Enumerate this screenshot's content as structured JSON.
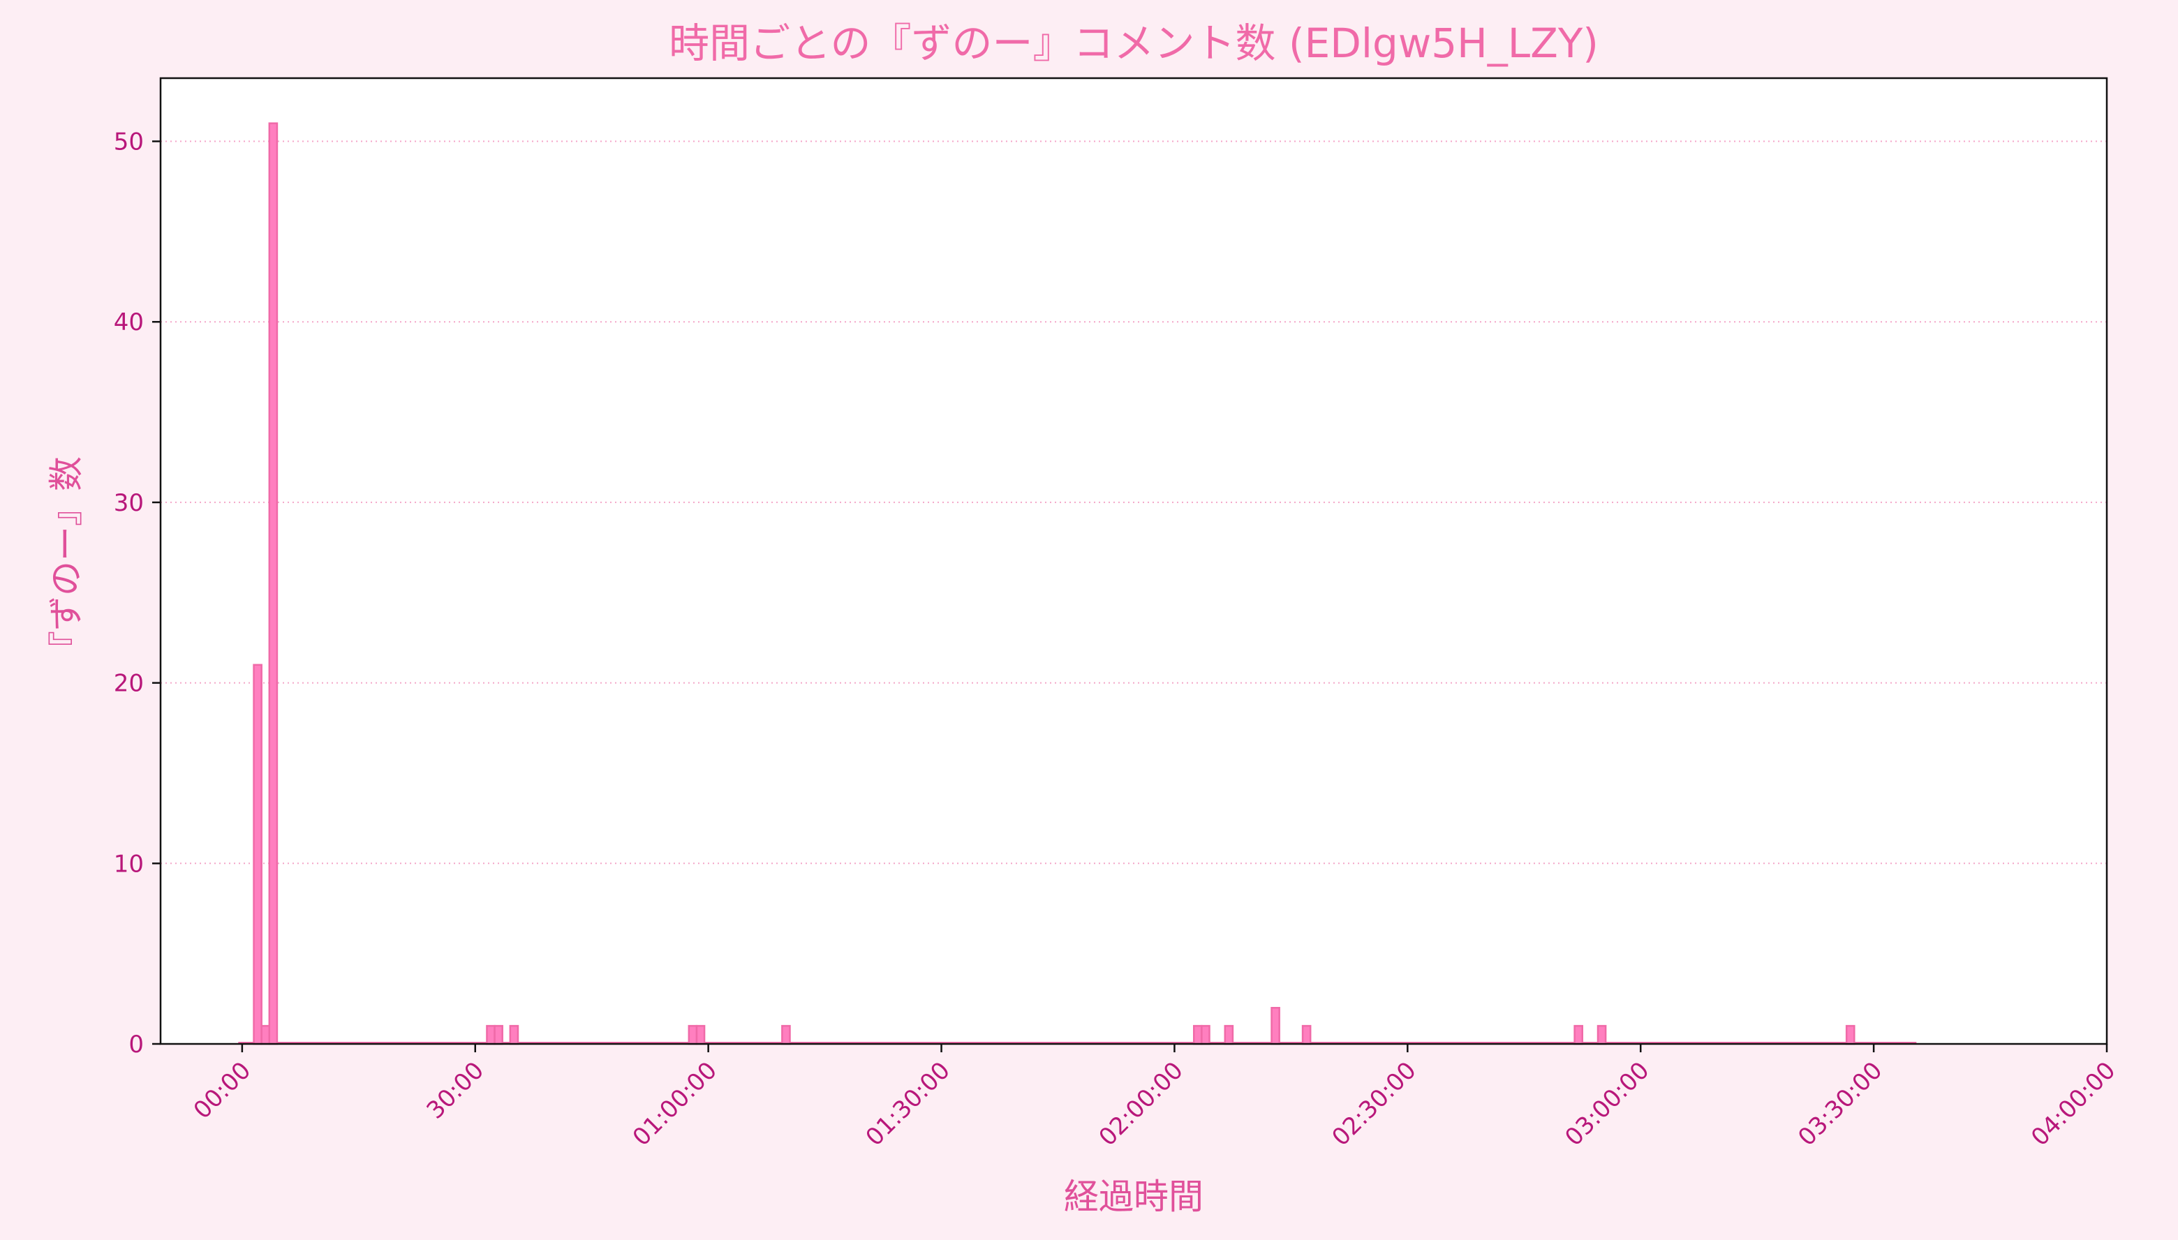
{
  "chart_data": {
    "type": "bar",
    "title": "時間ごとの『ずのー』コメント数 (EDlgw5H_LZY)",
    "xlabel": "経過時間",
    "ylabel": "『ずのー』数",
    "x_unit": "minutes since stream start",
    "bin_minutes": 1,
    "xlim": [
      -10.5,
      240
    ],
    "ylim": [
      0,
      53.5
    ],
    "xticks": [
      {
        "value": 0,
        "label": "00:00"
      },
      {
        "value": 30,
        "label": "30:00"
      },
      {
        "value": 60,
        "label": "01:00:00"
      },
      {
        "value": 90,
        "label": "01:30:00"
      },
      {
        "value": 120,
        "label": "02:00:00"
      },
      {
        "value": 150,
        "label": "02:30:00"
      },
      {
        "value": 180,
        "label": "03:00:00"
      },
      {
        "value": 210,
        "label": "03:30:00"
      },
      {
        "value": 240,
        "label": "04:00:00"
      }
    ],
    "yticks": [
      0,
      10,
      20,
      30,
      40,
      50
    ],
    "grid": "y-dotted",
    "baseline_range": [
      0,
      216
    ],
    "bars": [
      {
        "x": 2,
        "value": 21
      },
      {
        "x": 3,
        "value": 1
      },
      {
        "x": 4,
        "value": 51
      },
      {
        "x": 32,
        "value": 1
      },
      {
        "x": 33,
        "value": 1
      },
      {
        "x": 35,
        "value": 1
      },
      {
        "x": 58,
        "value": 1
      },
      {
        "x": 59,
        "value": 1
      },
      {
        "x": 70,
        "value": 1
      },
      {
        "x": 123,
        "value": 1
      },
      {
        "x": 124,
        "value": 1
      },
      {
        "x": 127,
        "value": 1
      },
      {
        "x": 133,
        "value": 2
      },
      {
        "x": 137,
        "value": 1
      },
      {
        "x": 172,
        "value": 1
      },
      {
        "x": 175,
        "value": 1
      },
      {
        "x": 207,
        "value": 1
      }
    ],
    "colors": {
      "background": "#fdeef4",
      "plot_bg": "#ffffff",
      "bar_fill": "#ff7fbf",
      "bar_edge": "#f06aa8",
      "grid": "#f4a6c8",
      "tick_text": "#b8177a",
      "title_text": "#f06aa8",
      "axis_label_text": "#e0509a"
    }
  }
}
